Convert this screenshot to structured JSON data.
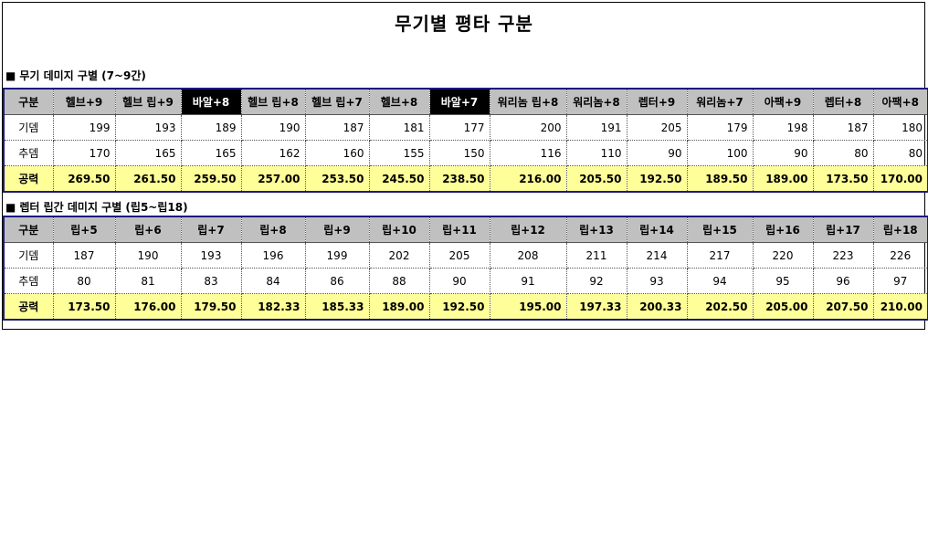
{
  "page_title": "무기별 평타 구분",
  "section1": {
    "bullet": "■",
    "title": "무기 데미지 구별 (7~9간)",
    "header_label": "구분",
    "columns": [
      "헬브+9",
      "헬브 립+9",
      "바알+8",
      "헬브 립+8",
      "헬브 립+7",
      "헬브+8",
      "바알+7",
      "워리놈 립+8",
      "워리놈+8",
      "렙터+9",
      "워리놈+7",
      "아팩+9",
      "렙터+8",
      "아팩+8"
    ],
    "rows": [
      {
        "label": "기뎀",
        "values": [
          "199",
          "193",
          "189",
          "190",
          "187",
          "181",
          "177",
          "200",
          "191",
          "205",
          "179",
          "198",
          "187",
          "180"
        ]
      },
      {
        "label": "추뎀",
        "values": [
          "170",
          "165",
          "165",
          "162",
          "160",
          "155",
          "150",
          "116",
          "110",
          "90",
          "100",
          "90",
          "80",
          "80"
        ]
      },
      {
        "label": "공력",
        "values": [
          "269.50",
          "261.50",
          "259.50",
          "257.00",
          "253.50",
          "245.50",
          "238.50",
          "216.00",
          "205.50",
          "192.50",
          "189.50",
          "189.00",
          "173.50",
          "170.00"
        ]
      }
    ]
  },
  "section2": {
    "bullet": "■",
    "title": "렙터 립간 데미지 구별 (립5~립18)",
    "header_label": "구분",
    "columns": [
      "립+5",
      "립+6",
      "립+7",
      "립+8",
      "립+9",
      "립+10",
      "립+11",
      "립+12",
      "립+13",
      "립+14",
      "립+15",
      "립+16",
      "립+17",
      "립+18"
    ],
    "rows": [
      {
        "label": "기뎀",
        "values": [
          "187",
          "190",
          "193",
          "196",
          "199",
          "202",
          "205",
          "208",
          "211",
          "214",
          "217",
          "220",
          "223",
          "226"
        ]
      },
      {
        "label": "추뎀",
        "values": [
          "80",
          "81",
          "83",
          "84",
          "86",
          "88",
          "90",
          "91",
          "92",
          "93",
          "94",
          "95",
          "96",
          "97"
        ]
      },
      {
        "label": "공력",
        "values": [
          "173.50",
          "176.00",
          "179.50",
          "182.33",
          "185.33",
          "189.00",
          "192.50",
          "195.00",
          "197.33",
          "200.33",
          "202.50",
          "205.00",
          "207.50",
          "210.00"
        ]
      }
    ]
  },
  "colors": {
    "header_bg": "#c0c0c0",
    "highlight_header_bg": "#000000",
    "power_row_bg": "#ffff99",
    "table_border": "#1a1a80"
  }
}
